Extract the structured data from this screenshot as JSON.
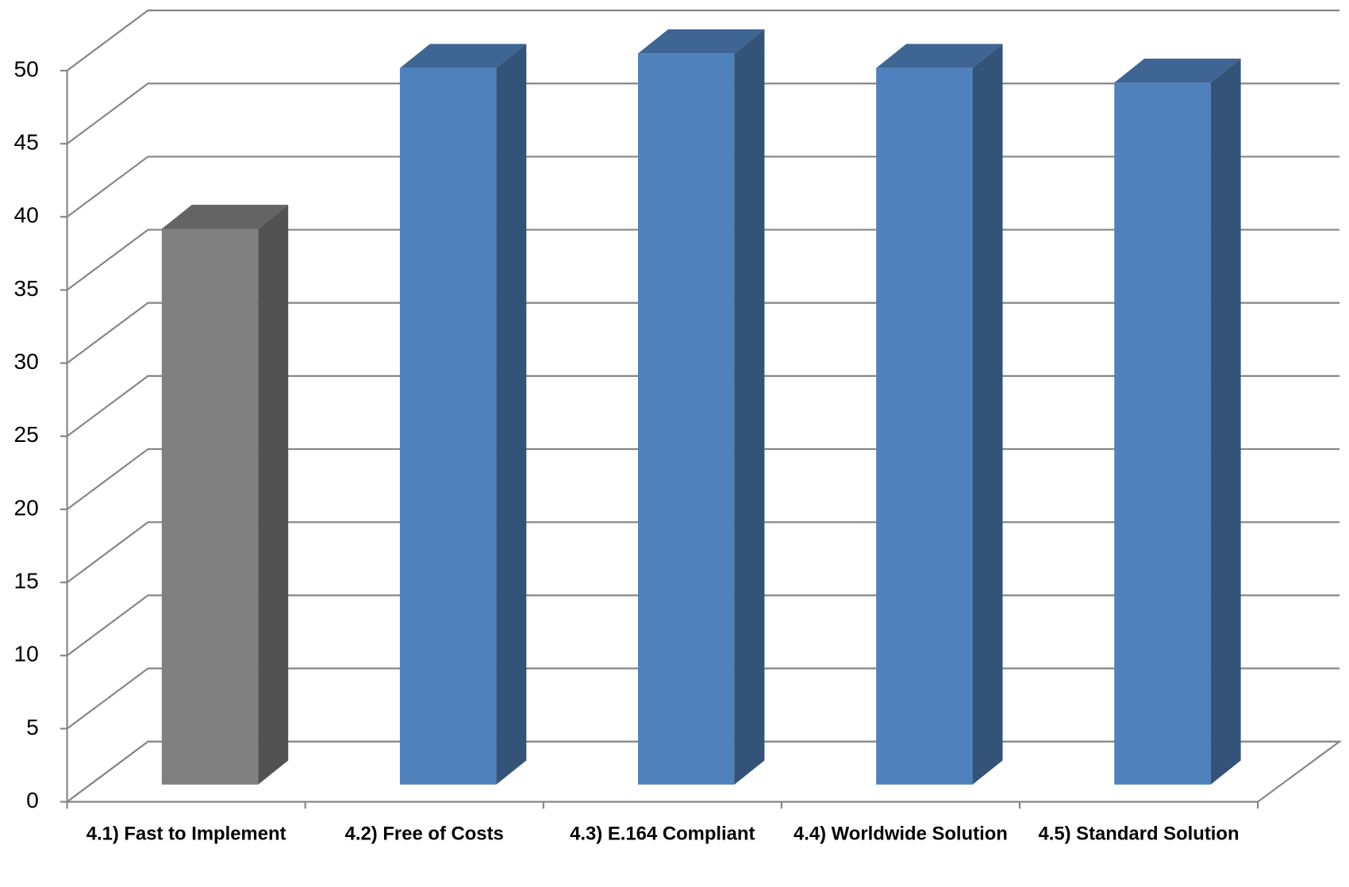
{
  "chart_data": {
    "type": "bar3d",
    "categories": [
      "4.1) Fast to Implement",
      "4.2) Free of Costs",
      "4.3) E.164 Compliant",
      "4.4) Worldwide Solution",
      "4.5) Standard Solution"
    ],
    "values": [
      38,
      49,
      50,
      49,
      48
    ],
    "colors": [
      "#808080",
      "#4f81bd",
      "#4f81bd",
      "#4f81bd",
      "#4f81bd"
    ],
    "ylim": [
      0,
      50
    ],
    "yticks": [
      0,
      5,
      10,
      15,
      20,
      25,
      30,
      35,
      40,
      45,
      50
    ],
    "grid": true
  }
}
